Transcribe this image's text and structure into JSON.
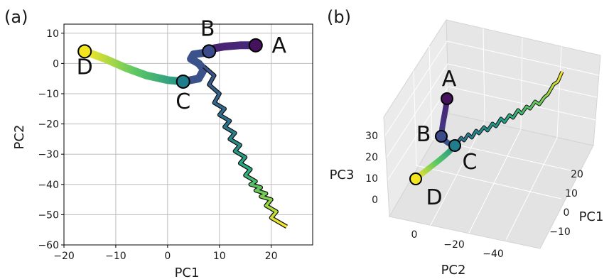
{
  "chart_data": [
    {
      "panel": "(a)",
      "type": "line",
      "xlabel": "PC1",
      "ylabel": "PC2",
      "xlim": [
        -20,
        28
      ],
      "ylim": [
        -60,
        13
      ],
      "xticks": [
        -20,
        -10,
        0,
        10,
        20
      ],
      "yticks": [
        10,
        0,
        -10,
        -20,
        -30,
        -40,
        -50,
        -60
      ],
      "xtick_labels": [
        "−20",
        "−10",
        "0",
        "10",
        "20"
      ],
      "ytick_labels": [
        "10",
        "0",
        "−10",
        "−20",
        "−30",
        "−40",
        "−50",
        "−60"
      ],
      "grid": true,
      "colormap": "viridis",
      "colors": [
        "#440154",
        "#3b528b",
        "#21918c",
        "#5ec962",
        "#fde725"
      ],
      "segments": [
        {
          "from": "A",
          "to": "B",
          "x": [
            17,
            14,
            11,
            9,
            8
          ],
          "y": [
            6,
            6,
            5.6,
            5,
            4
          ]
        },
        {
          "from": "B",
          "to": "C",
          "x": [
            8,
            7,
            5,
            4.5,
            6,
            7,
            6,
            3
          ],
          "y": [
            4,
            3.5,
            3,
            1.5,
            0,
            -2,
            -5,
            -6
          ]
        },
        {
          "from": "C",
          "to": "D",
          "x": [
            3,
            0,
            -4,
            -8,
            -12,
            -16
          ],
          "y": [
            -6,
            -5.5,
            -4,
            -1.5,
            1.5,
            4
          ]
        }
      ],
      "tail": {
        "x": [
          7,
          9,
          8,
          10,
          9,
          11,
          10,
          12,
          11,
          13,
          12,
          14,
          13,
          15,
          14,
          16,
          15,
          17,
          16,
          18,
          17,
          19,
          18,
          20,
          19,
          21,
          20,
          23
        ],
        "y": [
          -1,
          -4,
          -7,
          -10,
          -13,
          -15,
          -17,
          -19,
          -21,
          -23,
          -25,
          -27,
          -29,
          -31,
          -33,
          -35,
          -37,
          -39,
          -40,
          -41,
          -42,
          -43,
          -44,
          -45,
          -47,
          -49,
          -51,
          -54
        ]
      },
      "markers": [
        {
          "label": "A",
          "x": 17,
          "y": 6,
          "fill": "#45125e"
        },
        {
          "label": "B",
          "x": 8,
          "y": 4,
          "fill": "#3b4a8a"
        },
        {
          "label": "C",
          "x": 3,
          "y": -6,
          "fill": "#1f7d8c"
        },
        {
          "label": "D",
          "x": -16,
          "y": 4,
          "fill": "#f4e61e"
        }
      ]
    },
    {
      "panel": "(b)",
      "type": "line3d",
      "xlabel": "PC2",
      "ylabel": "PC1",
      "zlabel": "PC3",
      "pc2_ticks": [
        0,
        -20,
        -40
      ],
      "pc2_tick_labels": [
        "0",
        "−20",
        "−40"
      ],
      "pc1_ticks": [
        20,
        10,
        0,
        -10
      ],
      "pc1_tick_labels": [
        "20",
        "10",
        "0",
        "−10"
      ],
      "pc3_ticks": [
        30,
        20,
        10,
        0
      ],
      "pc3_tick_labels": [
        "30",
        "20",
        "10",
        "0"
      ],
      "markers": [
        {
          "label": "A",
          "fill": "#45125e"
        },
        {
          "label": "B",
          "fill": "#3b4a8a"
        },
        {
          "label": "C",
          "fill": "#1f7d8c"
        },
        {
          "label": "D",
          "fill": "#f4e61e"
        }
      ]
    }
  ]
}
